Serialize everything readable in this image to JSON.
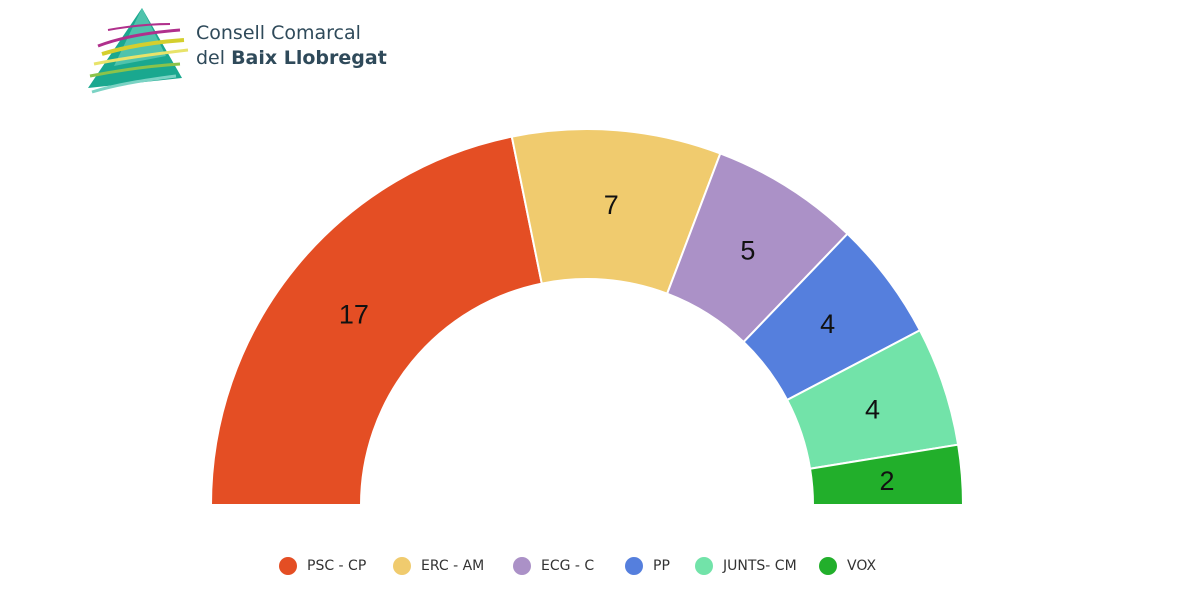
{
  "logo": {
    "line1": "Consell Comarcal",
    "line2_prefix": "del ",
    "line2_bold": "Baix Llobregat",
    "colors": [
      "#1aa88f",
      "#7bd3c4",
      "#d4cf2e",
      "#b0308c",
      "#8bc34a"
    ]
  },
  "chart_data": {
    "type": "pie",
    "style": "parliament-semicircle",
    "title": "",
    "total_seats": 39,
    "legend_position": "bottom-center",
    "series": [
      {
        "name": "PSC - CP",
        "value": 17,
        "color": "#e44e24"
      },
      {
        "name": "ERC - AM",
        "value": 7,
        "color": "#f0cb6e"
      },
      {
        "name": "ECG - C",
        "value": 5,
        "color": "#ab91c7"
      },
      {
        "name": "PP",
        "value": 4,
        "color": "#557fdd"
      },
      {
        "name": "JUNTS- CM",
        "value": 4,
        "color": "#72e3a9"
      },
      {
        "name": "VOX",
        "value": 2,
        "color": "#22af2b"
      }
    ]
  }
}
